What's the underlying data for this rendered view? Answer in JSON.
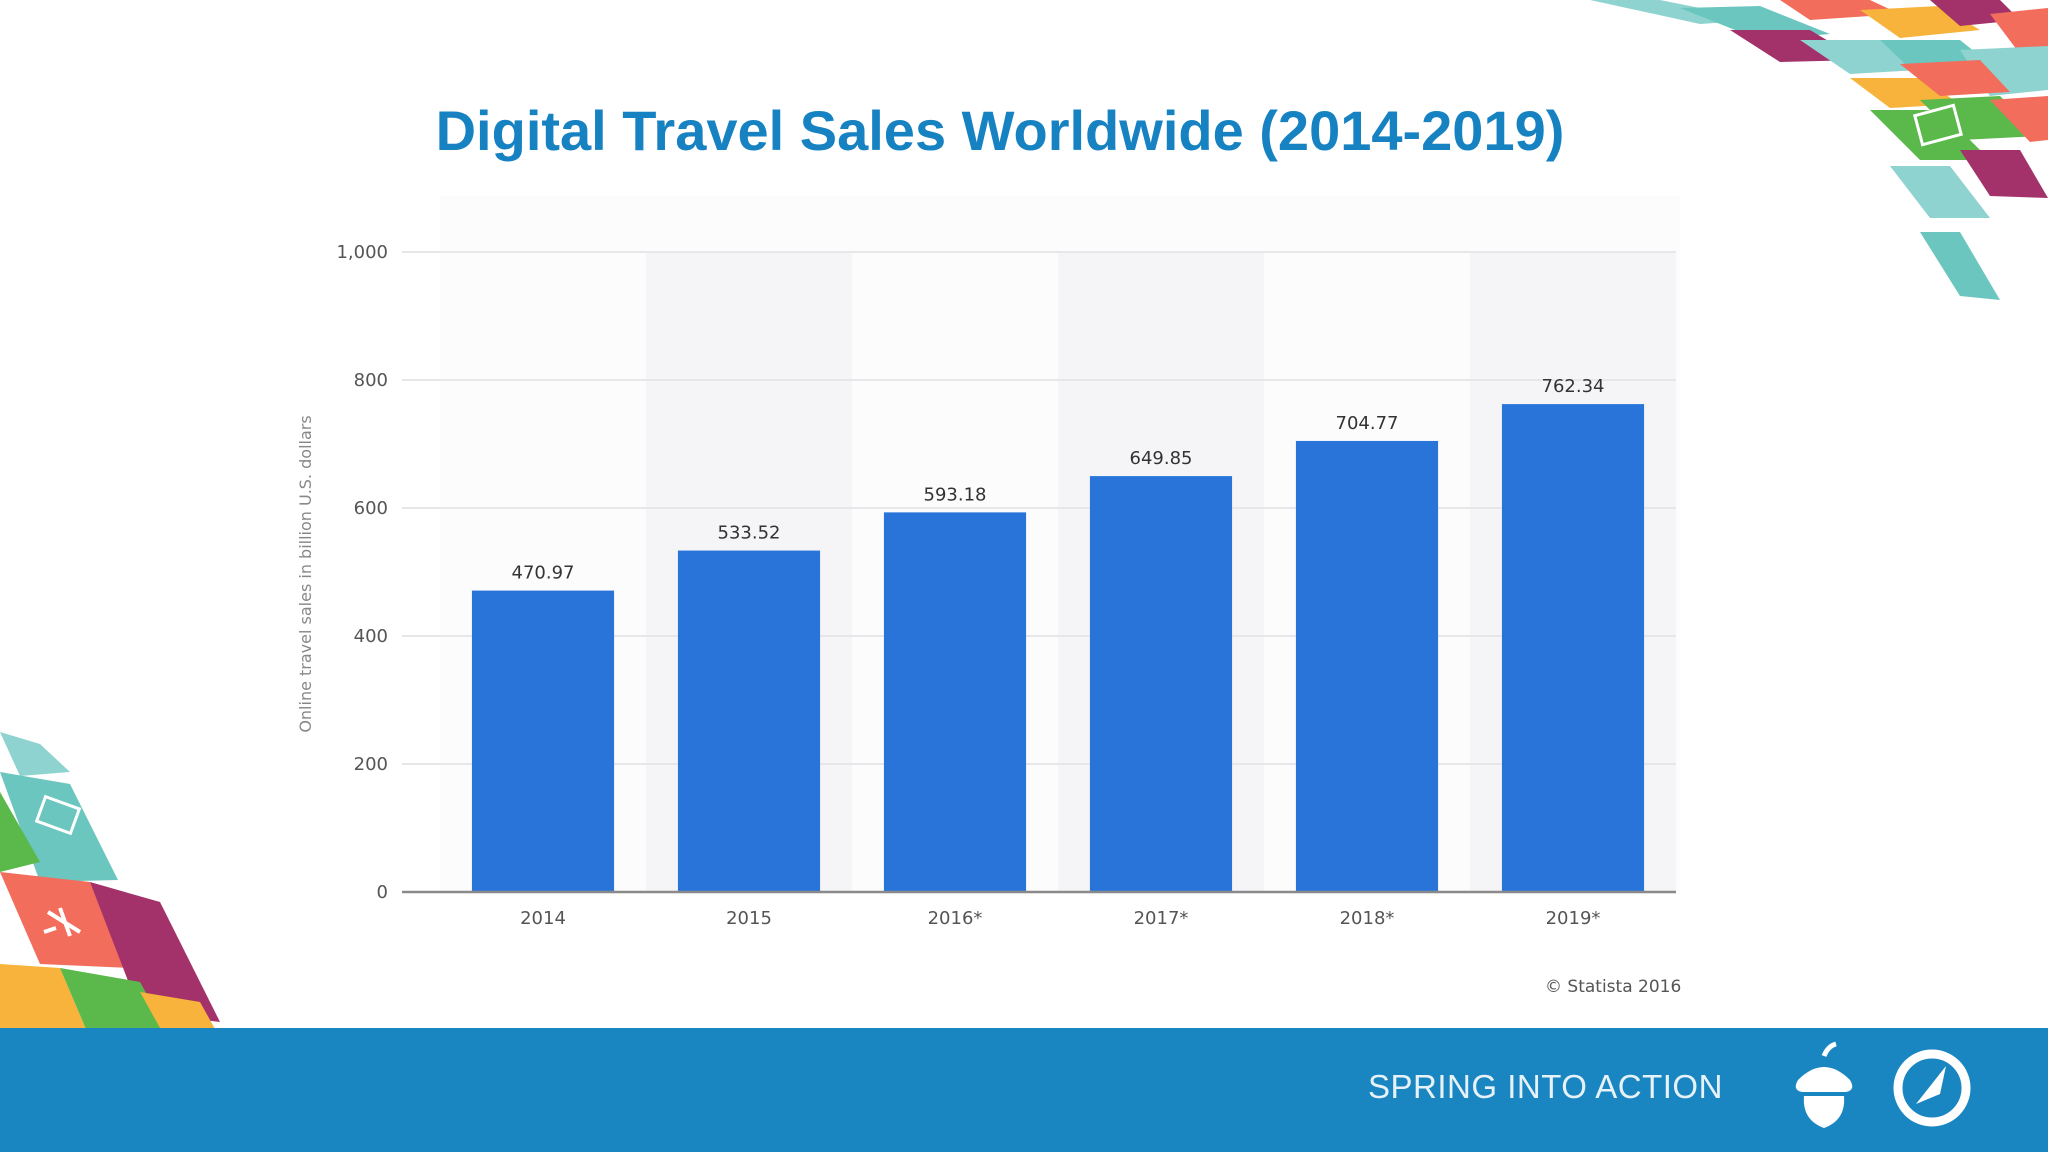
{
  "slide": {
    "title": "Digital Travel Sales Worldwide (2014-2019)",
    "footer_text": "SPRING INTO ACTION",
    "colors": {
      "title": "#1782c2",
      "footer_band": "#1a86c1",
      "bar": "#2874d9"
    },
    "icons": [
      "acorn-logo-icon",
      "compass-logo-icon",
      "airplane-icon",
      "suitcase-icon"
    ]
  },
  "chart_data": {
    "type": "bar",
    "categories": [
      "2014",
      "2015",
      "2016*",
      "2017*",
      "2018*",
      "2019*"
    ],
    "values": [
      470.97,
      533.52,
      593.18,
      649.85,
      704.77,
      762.34
    ],
    "value_labels": [
      "470.97",
      "533.52",
      "593.18",
      "649.85",
      "704.77",
      "762.34"
    ],
    "title": "",
    "xlabel": "",
    "ylabel": "Online travel sales in billion U.S. dollars",
    "ylim": [
      0,
      1000
    ],
    "yticks": [
      0,
      200,
      400,
      600,
      800,
      1000
    ],
    "ytick_labels": [
      "0",
      "200",
      "400",
      "600",
      "800",
      "1,000"
    ],
    "grid": true,
    "source": "© Statista 2016"
  }
}
